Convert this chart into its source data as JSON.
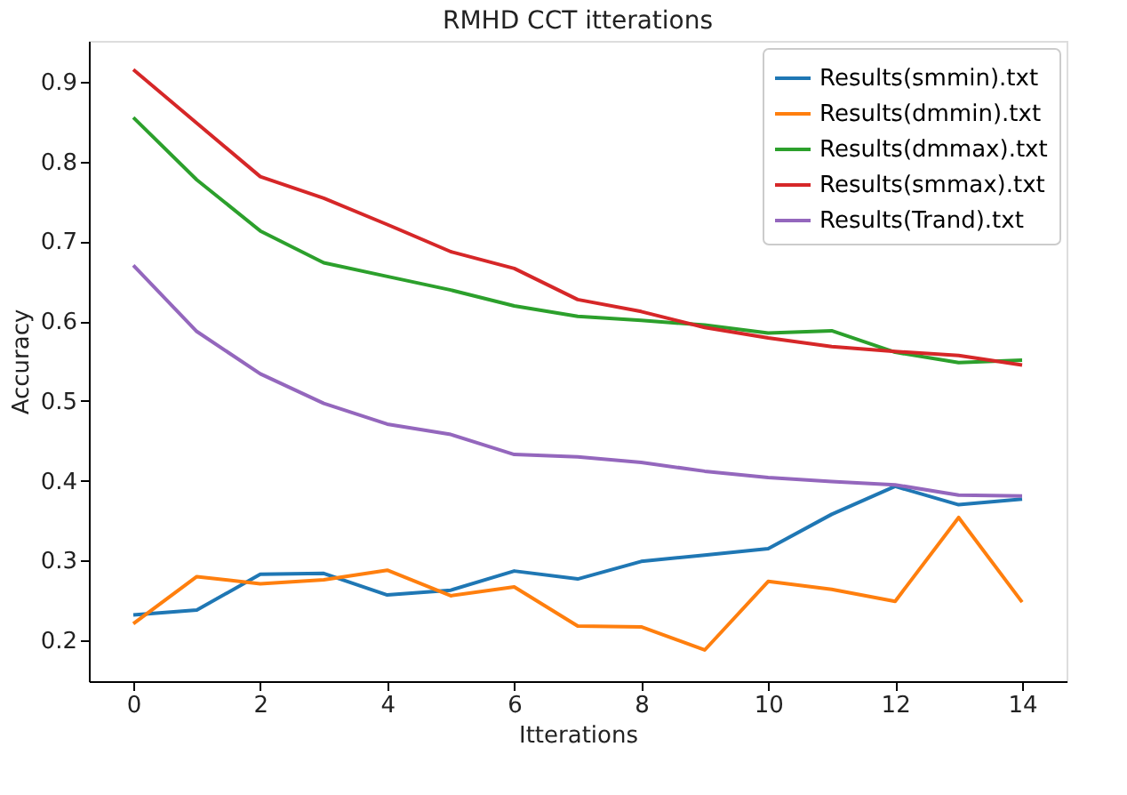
{
  "chart_data": {
    "type": "line",
    "title": "RMHD CCT itterations",
    "xlabel": "Itterations",
    "ylabel": "Accuracy",
    "x": [
      0,
      1,
      2,
      3,
      4,
      5,
      6,
      7,
      8,
      9,
      10,
      11,
      12,
      13,
      14
    ],
    "series": [
      {
        "name": "Results(smmin).txt",
        "color": "#1f77b4",
        "values": [
          0.232,
          0.238,
          0.283,
          0.284,
          0.257,
          0.263,
          0.287,
          0.277,
          0.299,
          0.307,
          0.315,
          0.358,
          0.393,
          0.37,
          0.377
        ]
      },
      {
        "name": "Results(dmmin).txt",
        "color": "#ff7f0e",
        "values": [
          0.221,
          0.28,
          0.271,
          0.276,
          0.288,
          0.256,
          0.267,
          0.218,
          0.217,
          0.188,
          0.274,
          0.264,
          0.249,
          0.354,
          0.248
        ]
      },
      {
        "name": "Results(dmmax).txt",
        "color": "#2ca02c",
        "values": [
          0.855,
          0.777,
          0.713,
          0.673,
          0.656,
          0.639,
          0.619,
          0.606,
          0.601,
          0.595,
          0.585,
          0.588,
          0.561,
          0.548,
          0.551
        ]
      },
      {
        "name": "Results(smmax).txt",
        "color": "#d62728",
        "values": [
          0.915,
          0.848,
          0.781,
          0.754,
          0.721,
          0.687,
          0.666,
          0.627,
          0.612,
          0.592,
          0.579,
          0.568,
          0.562,
          0.557,
          0.545
        ]
      },
      {
        "name": "Results(Trand).txt",
        "color": "#9467bd",
        "values": [
          0.67,
          0.587,
          0.534,
          0.497,
          0.471,
          0.458,
          0.433,
          0.43,
          0.423,
          0.412,
          0.404,
          0.399,
          0.395,
          0.382,
          0.381
        ]
      }
    ],
    "xlim": [
      -0.7,
      14.7
    ],
    "ylim": [
      0.149,
      0.951
    ],
    "xticks": [
      0,
      2,
      4,
      6,
      8,
      10,
      12,
      14
    ],
    "yticks": [
      0.2,
      0.3,
      0.4,
      0.5,
      0.6,
      0.7,
      0.8,
      0.9
    ],
    "grid": false,
    "legend": "top right",
    "marker": "none",
    "line_style": "solid"
  }
}
